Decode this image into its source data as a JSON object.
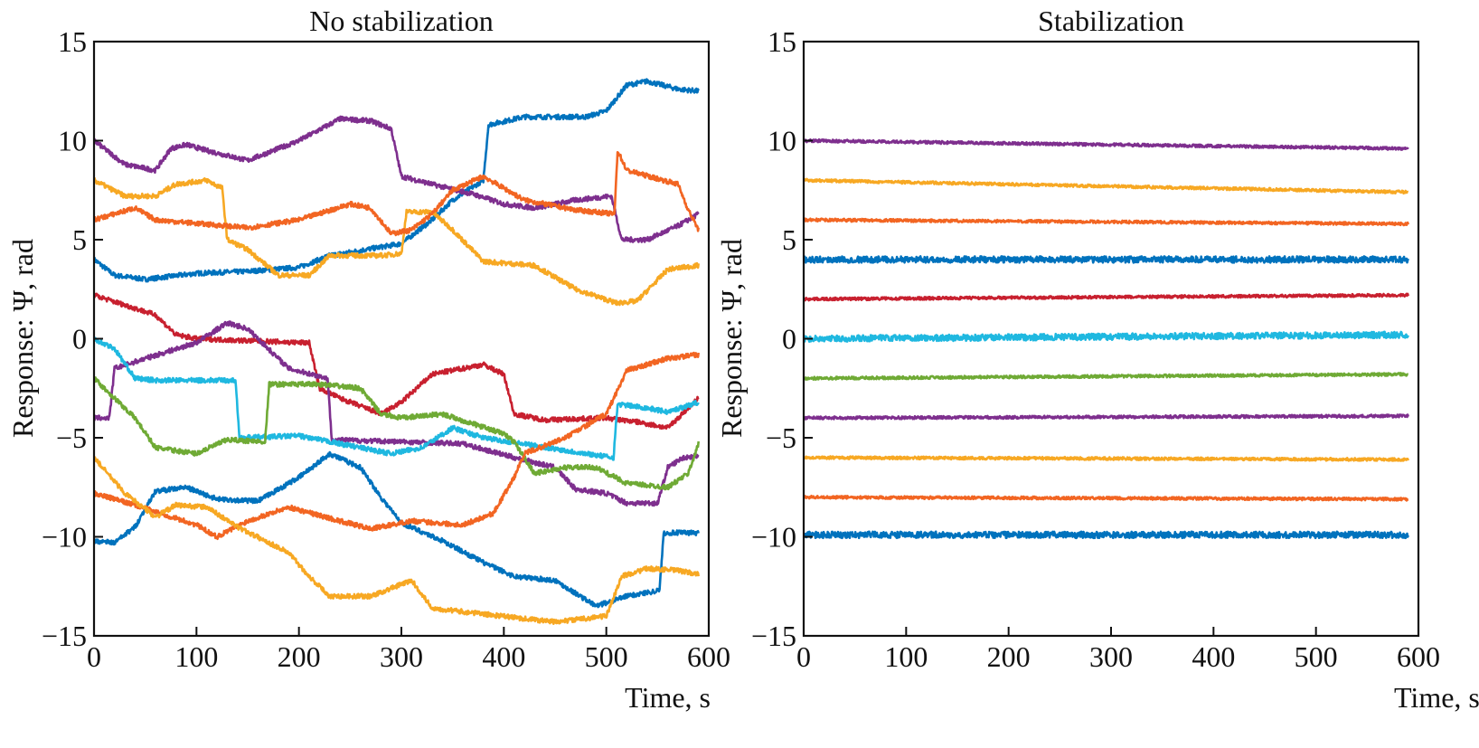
{
  "chart_data": [
    {
      "type": "line",
      "title": "No stabilization",
      "xlabel": "Time, s",
      "ylabel": "Response: Ψ, rad",
      "xlim": [
        0,
        600
      ],
      "ylim": [
        -15,
        15
      ],
      "xticks": [
        0,
        100,
        200,
        300,
        400,
        500,
        600
      ],
      "yticks": [
        15,
        10,
        5,
        0,
        -5,
        -10,
        -15
      ],
      "ytick_labels": [
        "15",
        "10",
        "5",
        "0",
        "−5",
        "−10",
        "−15"
      ],
      "grid": false,
      "series": [
        {
          "color": "#0072BD",
          "points": [
            [
              0,
              4
            ],
            [
              20,
              3.2
            ],
            [
              50,
              3
            ],
            [
              100,
              3.3
            ],
            [
              150,
              3.4
            ],
            [
              200,
              3.6
            ],
            [
              230,
              4.2
            ],
            [
              300,
              4.8
            ],
            [
              330,
              6
            ],
            [
              350,
              7
            ],
            [
              380,
              8
            ],
            [
              385,
              10.8
            ],
            [
              420,
              11.2
            ],
            [
              480,
              11.2
            ],
            [
              500,
              11.5
            ],
            [
              520,
              12.8
            ],
            [
              540,
              13
            ],
            [
              570,
              12.6
            ],
            [
              590,
              12.5
            ]
          ]
        },
        {
          "color": "#7E2F8E",
          "points": [
            [
              0,
              10
            ],
            [
              30,
              8.8
            ],
            [
              60,
              8.5
            ],
            [
              75,
              9.6
            ],
            [
              90,
              9.8
            ],
            [
              110,
              9.5
            ],
            [
              150,
              9
            ],
            [
              200,
              10
            ],
            [
              240,
              11.1
            ],
            [
              270,
              11
            ],
            [
              290,
              10.6
            ],
            [
              300,
              8.2
            ],
            [
              330,
              7.8
            ],
            [
              370,
              7.3
            ],
            [
              400,
              6.8
            ],
            [
              430,
              6.6
            ],
            [
              470,
              7
            ],
            [
              505,
              7.2
            ],
            [
              515,
              5
            ],
            [
              540,
              5
            ],
            [
              570,
              5.7
            ],
            [
              590,
              6.3
            ]
          ]
        },
        {
          "color": "#F7A823",
          "points": [
            [
              0,
              8
            ],
            [
              30,
              7.2
            ],
            [
              60,
              7.2
            ],
            [
              80,
              7.8
            ],
            [
              110,
              8
            ],
            [
              125,
              7.6
            ],
            [
              130,
              5
            ],
            [
              150,
              4.5
            ],
            [
              180,
              3.2
            ],
            [
              210,
              3.2
            ],
            [
              230,
              4.2
            ],
            [
              280,
              4.2
            ],
            [
              300,
              4.3
            ],
            [
              305,
              6.4
            ],
            [
              330,
              6.4
            ],
            [
              350,
              5.5
            ],
            [
              380,
              3.9
            ],
            [
              430,
              3.7
            ],
            [
              470,
              2.5
            ],
            [
              510,
              1.8
            ],
            [
              530,
              1.9
            ],
            [
              560,
              3.5
            ],
            [
              590,
              3.7
            ]
          ]
        },
        {
          "color": "#F26522",
          "points": [
            [
              0,
              6
            ],
            [
              40,
              6.6
            ],
            [
              60,
              6
            ],
            [
              150,
              5.6
            ],
            [
              200,
              6
            ],
            [
              250,
              6.8
            ],
            [
              270,
              6.6
            ],
            [
              290,
              5.3
            ],
            [
              310,
              5.5
            ],
            [
              330,
              6.3
            ],
            [
              350,
              7.5
            ],
            [
              380,
              8.2
            ],
            [
              420,
              7
            ],
            [
              470,
              6.5
            ],
            [
              508,
              6.3
            ],
            [
              511,
              9.5
            ],
            [
              520,
              8.5
            ],
            [
              570,
              7.8
            ],
            [
              580,
              6.5
            ],
            [
              590,
              5.5
            ]
          ]
        },
        {
          "color": "#C8202F",
          "points": [
            [
              0,
              2.2
            ],
            [
              30,
              1.7
            ],
            [
              60,
              1.2
            ],
            [
              80,
              0.2
            ],
            [
              100,
              0
            ],
            [
              200,
              -0.2
            ],
            [
              210,
              -0.2
            ],
            [
              220,
              -2.5
            ],
            [
              240,
              -3
            ],
            [
              280,
              -3.8
            ],
            [
              300,
              -3.2
            ],
            [
              330,
              -1.8
            ],
            [
              380,
              -1.3
            ],
            [
              400,
              -1.8
            ],
            [
              410,
              -3.8
            ],
            [
              440,
              -4.1
            ],
            [
              500,
              -4
            ],
            [
              530,
              -4.2
            ],
            [
              560,
              -4.5
            ],
            [
              590,
              -3
            ]
          ]
        },
        {
          "color": "#7E2F8E",
          "points": [
            [
              0,
              -4
            ],
            [
              15,
              -4
            ],
            [
              20,
              -1.5
            ],
            [
              50,
              -1
            ],
            [
              100,
              -0.2
            ],
            [
              130,
              0.8
            ],
            [
              150,
              0.5
            ],
            [
              170,
              -0.5
            ],
            [
              190,
              -1.5
            ],
            [
              228,
              -2
            ],
            [
              232,
              -5.1
            ],
            [
              300,
              -5.2
            ],
            [
              360,
              -5.3
            ],
            [
              410,
              -6
            ],
            [
              450,
              -6.5
            ],
            [
              470,
              -7.6
            ],
            [
              500,
              -7.8
            ],
            [
              520,
              -8.3
            ],
            [
              550,
              -8.3
            ],
            [
              560,
              -6.5
            ],
            [
              575,
              -6
            ],
            [
              590,
              -5.9
            ]
          ]
        },
        {
          "color": "#1FB8E0",
          "points": [
            [
              0,
              0
            ],
            [
              20,
              -0.5
            ],
            [
              40,
              -2
            ],
            [
              60,
              -2.1
            ],
            [
              138,
              -2.1
            ],
            [
              142,
              -5
            ],
            [
              200,
              -4.9
            ],
            [
              250,
              -5.4
            ],
            [
              290,
              -5.8
            ],
            [
              320,
              -5.5
            ],
            [
              350,
              -4.5
            ],
            [
              380,
              -5
            ],
            [
              430,
              -5.4
            ],
            [
              480,
              -5.8
            ],
            [
              507,
              -6
            ],
            [
              511,
              -3.3
            ],
            [
              540,
              -3.5
            ],
            [
              560,
              -3.7
            ],
            [
              590,
              -3.2
            ]
          ]
        },
        {
          "color": "#6FAA35",
          "points": [
            [
              0,
              -2
            ],
            [
              20,
              -3
            ],
            [
              40,
              -4
            ],
            [
              60,
              -5.5
            ],
            [
              100,
              -5.8
            ],
            [
              130,
              -5.1
            ],
            [
              167,
              -5.2
            ],
            [
              171,
              -2.3
            ],
            [
              220,
              -2.3
            ],
            [
              260,
              -2.5
            ],
            [
              280,
              -3.8
            ],
            [
              300,
              -4
            ],
            [
              340,
              -3.8
            ],
            [
              400,
              -4.8
            ],
            [
              410,
              -5.2
            ],
            [
              430,
              -6.8
            ],
            [
              460,
              -6.5
            ],
            [
              490,
              -6.5
            ],
            [
              520,
              -7.3
            ],
            [
              560,
              -7.5
            ],
            [
              580,
              -6.8
            ],
            [
              590,
              -5.3
            ]
          ]
        },
        {
          "color": "#0072BD",
          "points": [
            [
              0,
              -10.2
            ],
            [
              20,
              -10.3
            ],
            [
              40,
              -9.5
            ],
            [
              60,
              -7.7
            ],
            [
              90,
              -7.5
            ],
            [
              120,
              -8.1
            ],
            [
              160,
              -8.2
            ],
            [
              200,
              -7
            ],
            [
              230,
              -5.8
            ],
            [
              260,
              -6.5
            ],
            [
              280,
              -8
            ],
            [
              300,
              -9.3
            ],
            [
              340,
              -10.2
            ],
            [
              380,
              -11.3
            ],
            [
              410,
              -12
            ],
            [
              450,
              -12.2
            ],
            [
              490,
              -13.5
            ],
            [
              520,
              -13
            ],
            [
              552,
              -12.7
            ],
            [
              556,
              -9.8
            ],
            [
              590,
              -9.8
            ]
          ]
        },
        {
          "color": "#F26522",
          "points": [
            [
              0,
              -7.8
            ],
            [
              40,
              -8.4
            ],
            [
              100,
              -9.4
            ],
            [
              120,
              -10
            ],
            [
              150,
              -9.2
            ],
            [
              190,
              -8.5
            ],
            [
              240,
              -9.2
            ],
            [
              270,
              -9.6
            ],
            [
              310,
              -9.2
            ],
            [
              360,
              -9.4
            ],
            [
              390,
              -8.8
            ],
            [
              410,
              -7
            ],
            [
              420,
              -5.8
            ],
            [
              460,
              -5
            ],
            [
              500,
              -3.8
            ],
            [
              520,
              -1.6
            ],
            [
              560,
              -1
            ],
            [
              590,
              -0.8
            ]
          ]
        },
        {
          "color": "#F7A823",
          "points": [
            [
              0,
              -6
            ],
            [
              30,
              -7.8
            ],
            [
              60,
              -9
            ],
            [
              80,
              -8.4
            ],
            [
              110,
              -8.5
            ],
            [
              140,
              -9.5
            ],
            [
              190,
              -10.8
            ],
            [
              210,
              -12
            ],
            [
              230,
              -13
            ],
            [
              270,
              -13
            ],
            [
              310,
              -12.2
            ],
            [
              330,
              -13.6
            ],
            [
              380,
              -13.9
            ],
            [
              450,
              -14.3
            ],
            [
              500,
              -14
            ],
            [
              515,
              -12
            ],
            [
              540,
              -11.6
            ],
            [
              570,
              -11.7
            ],
            [
              590,
              -11.9
            ]
          ]
        }
      ]
    },
    {
      "type": "line",
      "title": "Stabilization",
      "xlabel": "Time, s",
      "ylabel": "Response: Ψ, rad",
      "xlim": [
        0,
        600
      ],
      "ylim": [
        -15,
        15
      ],
      "xticks": [
        0,
        100,
        200,
        300,
        400,
        500,
        600
      ],
      "yticks": [
        15,
        10,
        5,
        0,
        -5,
        -10,
        -15
      ],
      "ytick_labels": [
        "15",
        "10",
        "5",
        "0",
        "−5",
        "−10",
        "−15"
      ],
      "grid": false,
      "series": [
        {
          "color": "#7E2F8E",
          "points": [
            [
              0,
              10
            ],
            [
              590,
              9.6
            ]
          ]
        },
        {
          "color": "#F7A823",
          "points": [
            [
              0,
              8
            ],
            [
              590,
              7.4
            ]
          ]
        },
        {
          "color": "#F26522",
          "points": [
            [
              0,
              6
            ],
            [
              590,
              5.8
            ]
          ]
        },
        {
          "color": "#0072BD",
          "points": [
            [
              0,
              4
            ],
            [
              590,
              4
            ]
          ]
        },
        {
          "color": "#C8202F",
          "points": [
            [
              0,
              2
            ],
            [
              590,
              2.2
            ]
          ]
        },
        {
          "color": "#1FB8E0",
          "points": [
            [
              0,
              0
            ],
            [
              590,
              0.2
            ]
          ]
        },
        {
          "color": "#6FAA35",
          "points": [
            [
              0,
              -2
            ],
            [
              590,
              -1.8
            ]
          ]
        },
        {
          "color": "#7E2F8E",
          "points": [
            [
              0,
              -4
            ],
            [
              590,
              -3.9
            ]
          ]
        },
        {
          "color": "#F7A823",
          "points": [
            [
              0,
              -6
            ],
            [
              590,
              -6.1
            ]
          ]
        },
        {
          "color": "#F26522",
          "points": [
            [
              0,
              -8
            ],
            [
              590,
              -8.1
            ]
          ]
        },
        {
          "color": "#0072BD",
          "points": [
            [
              0,
              -9.9
            ],
            [
              590,
              -9.9
            ]
          ]
        }
      ]
    }
  ]
}
